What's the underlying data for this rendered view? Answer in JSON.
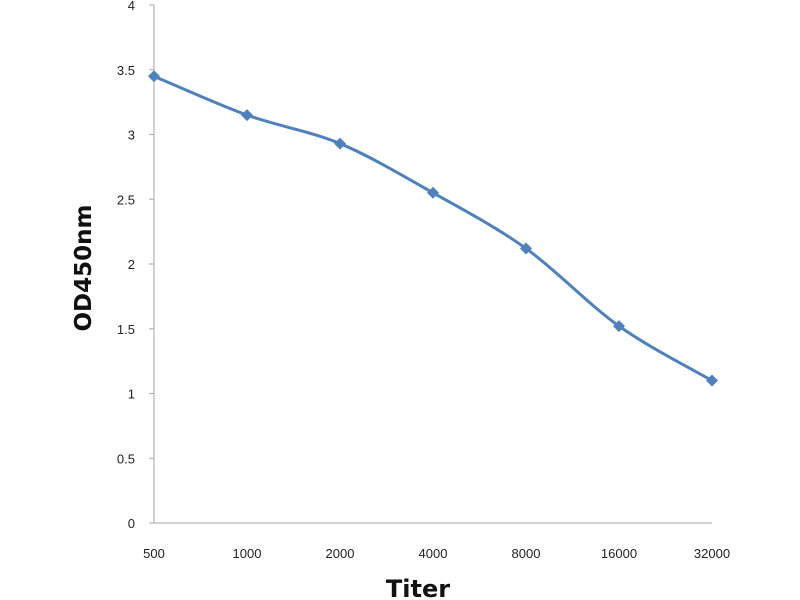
{
  "chart_data": {
    "type": "line",
    "title": "",
    "xlabel": "Titer",
    "ylabel": "OD450nm",
    "categories": [
      "500",
      "1000",
      "2000",
      "4000",
      "8000",
      "16000",
      "32000"
    ],
    "series": [
      {
        "values": [
          3.45,
          3.15,
          2.93,
          2.55,
          2.12,
          1.52,
          1.1
        ],
        "color": "#4F81BD",
        "marker": "diamond"
      }
    ],
    "ylim": [
      0,
      4
    ],
    "yticks": [
      "0",
      "0.5",
      "1",
      "1.5",
      "2",
      "2.5",
      "3",
      "3.5",
      "4"
    ],
    "grid": false,
    "legend": "none",
    "colors": {
      "axis": "#A6A6A6",
      "series": "#4F81BD"
    }
  }
}
